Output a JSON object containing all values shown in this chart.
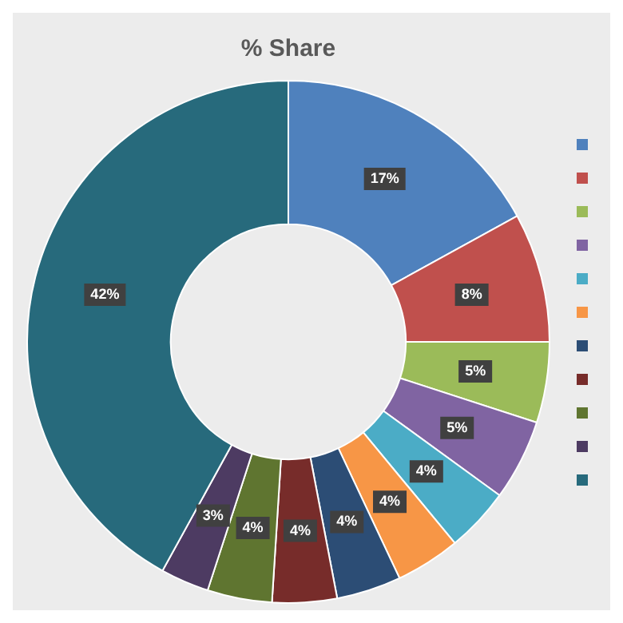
{
  "chart_data": {
    "type": "donut",
    "title": "% Share",
    "categories": [
      null,
      null,
      null,
      null,
      null,
      null,
      null,
      null,
      null,
      null,
      null
    ],
    "values": [
      17,
      8,
      5,
      5,
      4,
      4,
      4,
      4,
      4,
      3,
      42
    ],
    "value_labels": [
      "17%",
      "8%",
      "5%",
      "5%",
      "4%",
      "4%",
      "4%",
      "4%",
      "4%",
      "3%",
      "42%"
    ],
    "colors": [
      "#4f81bd",
      "#c0504d",
      "#9bbb59",
      "#8064a2",
      "#4bacc6",
      "#f79646",
      "#2c4d75",
      "#772c2a",
      "#5f7530",
      "#4d3b62",
      "#276a7c"
    ]
  }
}
